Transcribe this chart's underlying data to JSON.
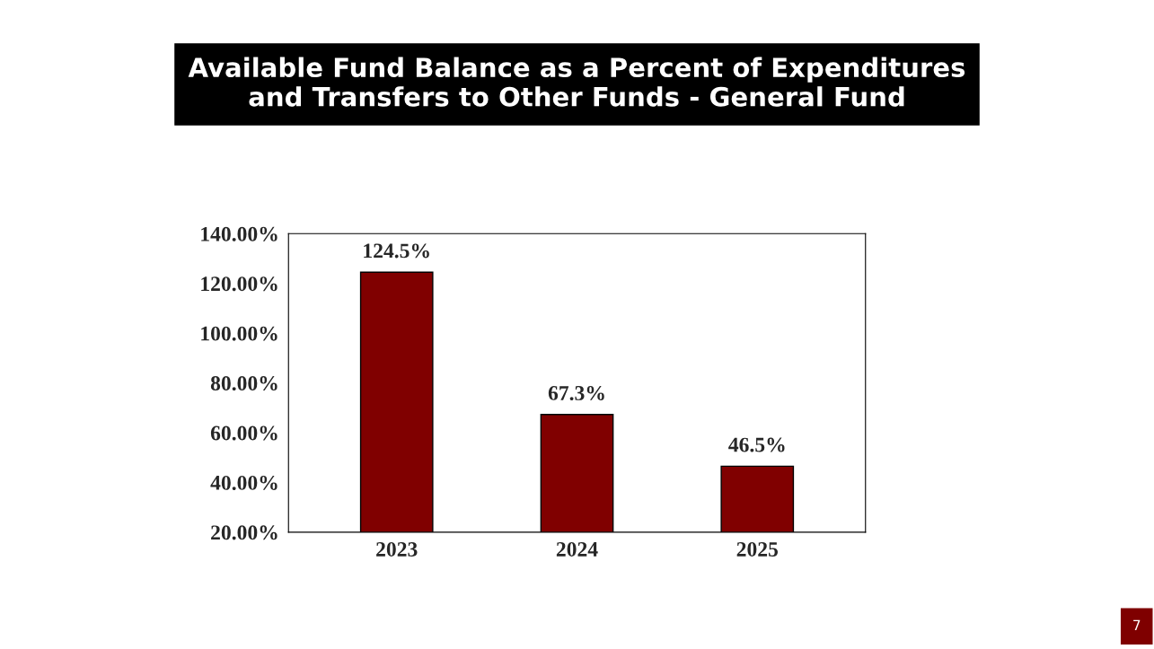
{
  "chart_data": {
    "type": "bar",
    "title": "Available Fund Balance as a Percent of Expenditures\nand Transfers to Other Funds - General Fund",
    "categories": [
      "2023",
      "2024",
      "2025"
    ],
    "values": [
      124.5,
      67.3,
      46.5
    ],
    "value_labels": [
      "124.5%",
      "67.3%",
      "46.5%"
    ],
    "color": "#800000",
    "ylim": [
      20,
      140
    ],
    "yticks": [
      {
        "value": 20,
        "label": "20.00%"
      },
      {
        "value": 40,
        "label": "40.00%"
      },
      {
        "value": 60,
        "label": "60.00%"
      },
      {
        "value": 80,
        "label": "80.00%"
      },
      {
        "value": 100,
        "label": "100.00%"
      },
      {
        "value": 120,
        "label": "120.00%"
      },
      {
        "value": 140,
        "label": "140.00%"
      }
    ],
    "grid": false,
    "legend": false,
    "annotations": [
      "7"
    ]
  }
}
